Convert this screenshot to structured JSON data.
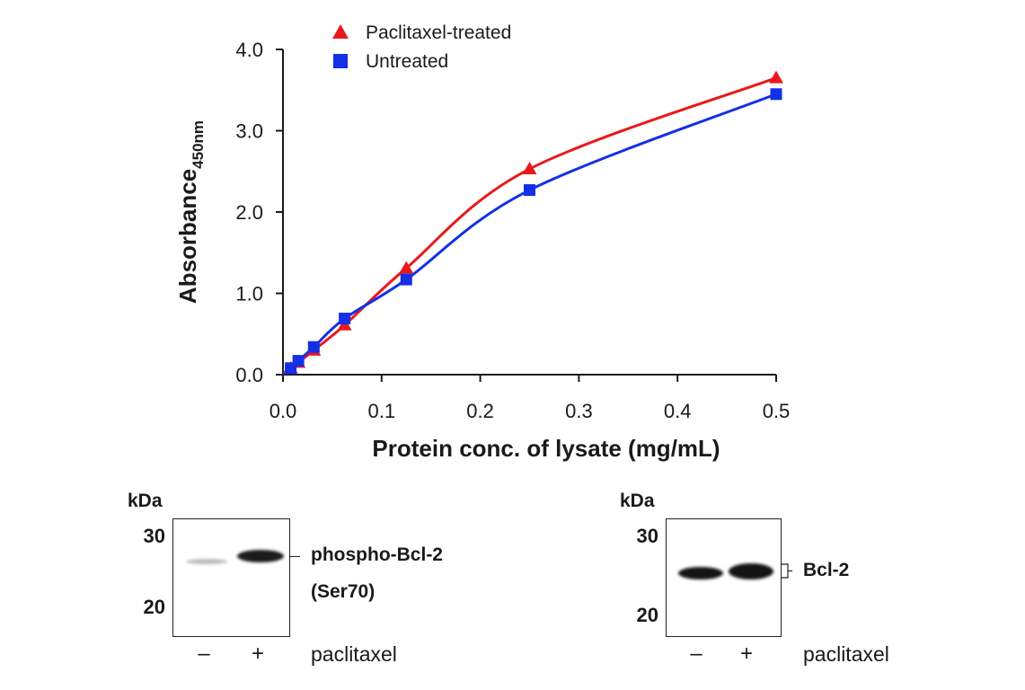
{
  "chart_data": {
    "type": "scatter",
    "xlabel": "Protein conc. of lysate (mg/mL)",
    "ylabel": "Absorbance",
    "ylabel_subscript": "450nm",
    "xlim": [
      0,
      0.5
    ],
    "ylim": [
      0,
      4.0
    ],
    "x_ticks": [
      "0.0",
      "0.1",
      "0.2",
      "0.3",
      "0.4",
      "0.5"
    ],
    "y_ticks": [
      "0.0",
      "1.0",
      "2.0",
      "3.0",
      "4.0"
    ],
    "grid": false,
    "legend_position": "top-left",
    "series": [
      {
        "name": "Paclitaxel-treated",
        "color": "#e8191c",
        "marker": "triangle",
        "x": [
          0.0078,
          0.0156,
          0.03125,
          0.0625,
          0.125,
          0.25,
          0.5
        ],
        "y": [
          0.08,
          0.15,
          0.3,
          0.61,
          1.31,
          2.53,
          3.65
        ]
      },
      {
        "name": "Untreated",
        "color": "#1430e6",
        "marker": "square",
        "x": [
          0.0078,
          0.0156,
          0.03125,
          0.0625,
          0.125,
          0.25,
          0.5
        ],
        "y": [
          0.08,
          0.17,
          0.34,
          0.69,
          1.17,
          2.27,
          3.45
        ]
      }
    ]
  },
  "blots": [
    {
      "kda": "kDa",
      "mw_markers": [
        "30",
        "20"
      ],
      "band_label_line1": "phospho-Bcl-2",
      "band_label_line2": "(Ser70)",
      "lanes": [
        "–",
        "+"
      ],
      "treatment": "paclitaxel"
    },
    {
      "kda": "kDa",
      "mw_markers": [
        "30",
        "20"
      ],
      "band_label_line1": "Bcl-2",
      "lanes": [
        "–",
        "+"
      ],
      "treatment": "paclitaxel"
    }
  ]
}
